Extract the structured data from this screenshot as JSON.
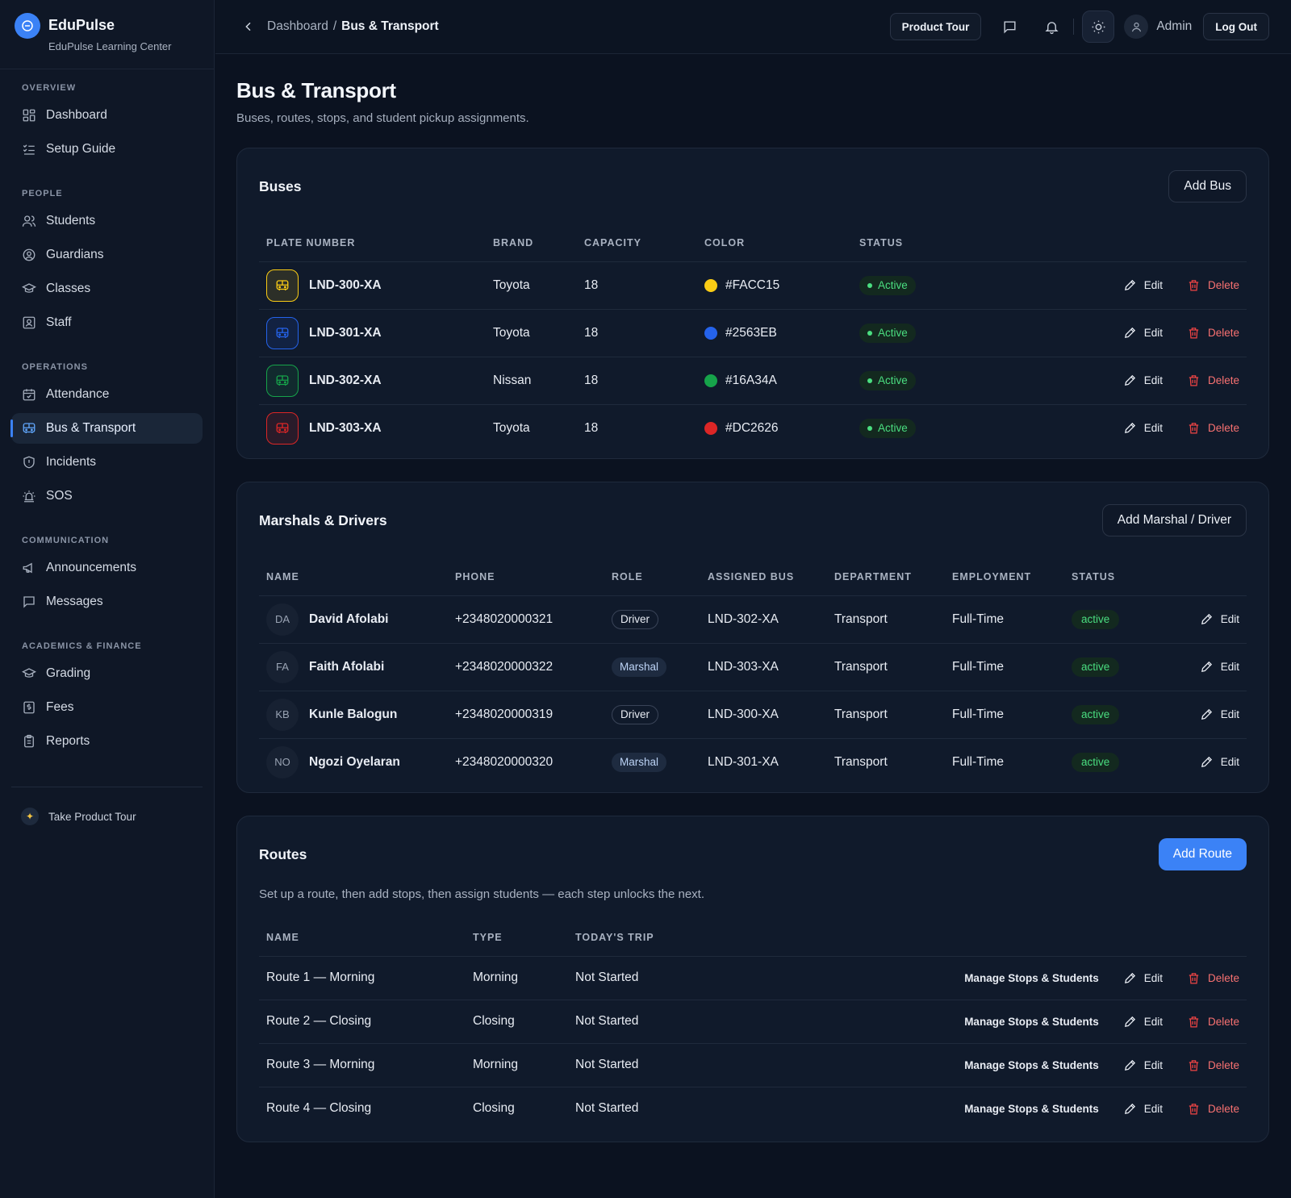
{
  "brand": {
    "name": "EduPulse",
    "subtitle": "EduPulse Learning Center"
  },
  "sidebar": {
    "sections": [
      {
        "title": "OVERVIEW",
        "items": [
          {
            "label": "Dashboard",
            "icon": "grid-icon"
          },
          {
            "label": "Setup Guide",
            "icon": "checklist-icon"
          }
        ]
      },
      {
        "title": "PEOPLE",
        "items": [
          {
            "label": "Students",
            "icon": "users-icon"
          },
          {
            "label": "Guardians",
            "icon": "user-circle-icon"
          },
          {
            "label": "Classes",
            "icon": "graduation-cap-icon"
          },
          {
            "label": "Staff",
            "icon": "id-badge-icon"
          }
        ]
      },
      {
        "title": "OPERATIONS",
        "items": [
          {
            "label": "Attendance",
            "icon": "calendar-check-icon"
          },
          {
            "label": "Bus & Transport",
            "icon": "bus-icon",
            "active": true
          },
          {
            "label": "Incidents",
            "icon": "shield-icon"
          },
          {
            "label": "SOS",
            "icon": "siren-icon"
          }
        ]
      },
      {
        "title": "COMMUNICATION",
        "items": [
          {
            "label": "Announcements",
            "icon": "megaphone-icon"
          },
          {
            "label": "Messages",
            "icon": "message-icon"
          }
        ]
      },
      {
        "title": "ACADEMICS & FINANCE",
        "items": [
          {
            "label": "Grading",
            "icon": "graduation-cap-icon"
          },
          {
            "label": "Fees",
            "icon": "receipt-icon"
          },
          {
            "label": "Reports",
            "icon": "clipboard-icon"
          }
        ]
      }
    ],
    "tour_label": "Take Product Tour"
  },
  "topbar": {
    "breadcrumb_parent": "Dashboard",
    "breadcrumb_sep": "/",
    "breadcrumb_current": "Bus & Transport",
    "product_tour": "Product Tour",
    "user_name": "Admin",
    "logout": "Log Out"
  },
  "page": {
    "title": "Bus & Transport",
    "subtitle": "Buses, routes, stops, and student pickup assignments."
  },
  "buses": {
    "title": "Buses",
    "add_label": "Add Bus",
    "columns": [
      "PLATE NUMBER",
      "BRAND",
      "CAPACITY",
      "COLOR",
      "STATUS"
    ],
    "edit_label": "Edit",
    "delete_label": "Delete",
    "rows": [
      {
        "plate": "LND-300-XA",
        "brand": "Toyota",
        "capacity": "18",
        "color": "#FACC15",
        "status": "Active"
      },
      {
        "plate": "LND-301-XA",
        "brand": "Toyota",
        "capacity": "18",
        "color": "#2563EB",
        "status": "Active"
      },
      {
        "plate": "LND-302-XA",
        "brand": "Nissan",
        "capacity": "18",
        "color": "#16A34A",
        "status": "Active"
      },
      {
        "plate": "LND-303-XA",
        "brand": "Toyota",
        "capacity": "18",
        "color": "#DC2626",
        "status": "Active"
      }
    ]
  },
  "staff": {
    "title": "Marshals & Drivers",
    "add_label": "Add Marshal / Driver",
    "columns": [
      "NAME",
      "PHONE",
      "ROLE",
      "ASSIGNED BUS",
      "DEPARTMENT",
      "EMPLOYMENT",
      "STATUS"
    ],
    "edit_label": "Edit",
    "rows": [
      {
        "initials": "DA",
        "name": "David Afolabi",
        "phone": "+2348020000321",
        "role": "Driver",
        "bus": "LND-302-XA",
        "department": "Transport",
        "employment": "Full-Time",
        "status": "active"
      },
      {
        "initials": "FA",
        "name": "Faith Afolabi",
        "phone": "+2348020000322",
        "role": "Marshal",
        "bus": "LND-303-XA",
        "department": "Transport",
        "employment": "Full-Time",
        "status": "active"
      },
      {
        "initials": "KB",
        "name": "Kunle Balogun",
        "phone": "+2348020000319",
        "role": "Driver",
        "bus": "LND-300-XA",
        "department": "Transport",
        "employment": "Full-Time",
        "status": "active"
      },
      {
        "initials": "NO",
        "name": "Ngozi Oyelaran",
        "phone": "+2348020000320",
        "role": "Marshal",
        "bus": "LND-301-XA",
        "department": "Transport",
        "employment": "Full-Time",
        "status": "active"
      }
    ]
  },
  "routes": {
    "title": "Routes",
    "add_label": "Add Route",
    "hint": "Set up a route, then add stops, then assign students — each step unlocks the next.",
    "columns": [
      "NAME",
      "TYPE",
      "TODAY'S TRIP"
    ],
    "manage_label": "Manage Stops & Students",
    "edit_label": "Edit",
    "delete_label": "Delete",
    "rows": [
      {
        "name": "Route 1 — Morning",
        "type": "Morning",
        "trip": "Not Started"
      },
      {
        "name": "Route 2 — Closing",
        "type": "Closing",
        "trip": "Not Started"
      },
      {
        "name": "Route 3 — Morning",
        "type": "Morning",
        "trip": "Not Started"
      },
      {
        "name": "Route 4 — Closing",
        "type": "Closing",
        "trip": "Not Started"
      }
    ]
  }
}
